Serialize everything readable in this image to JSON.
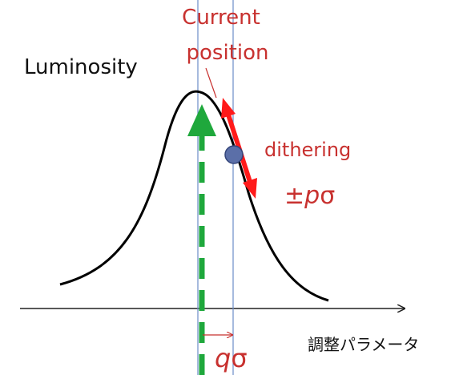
{
  "labels": {
    "y_quantity": "Luminosity",
    "current_position": [
      "Current",
      "position"
    ],
    "dithering": "dithering",
    "dither_range": {
      "sign": "±",
      "p": "p",
      "sigma": "σ"
    },
    "offset": {
      "q": "q",
      "sigma": "σ"
    },
    "x_quantity": "調整パラメータ"
  }
}
